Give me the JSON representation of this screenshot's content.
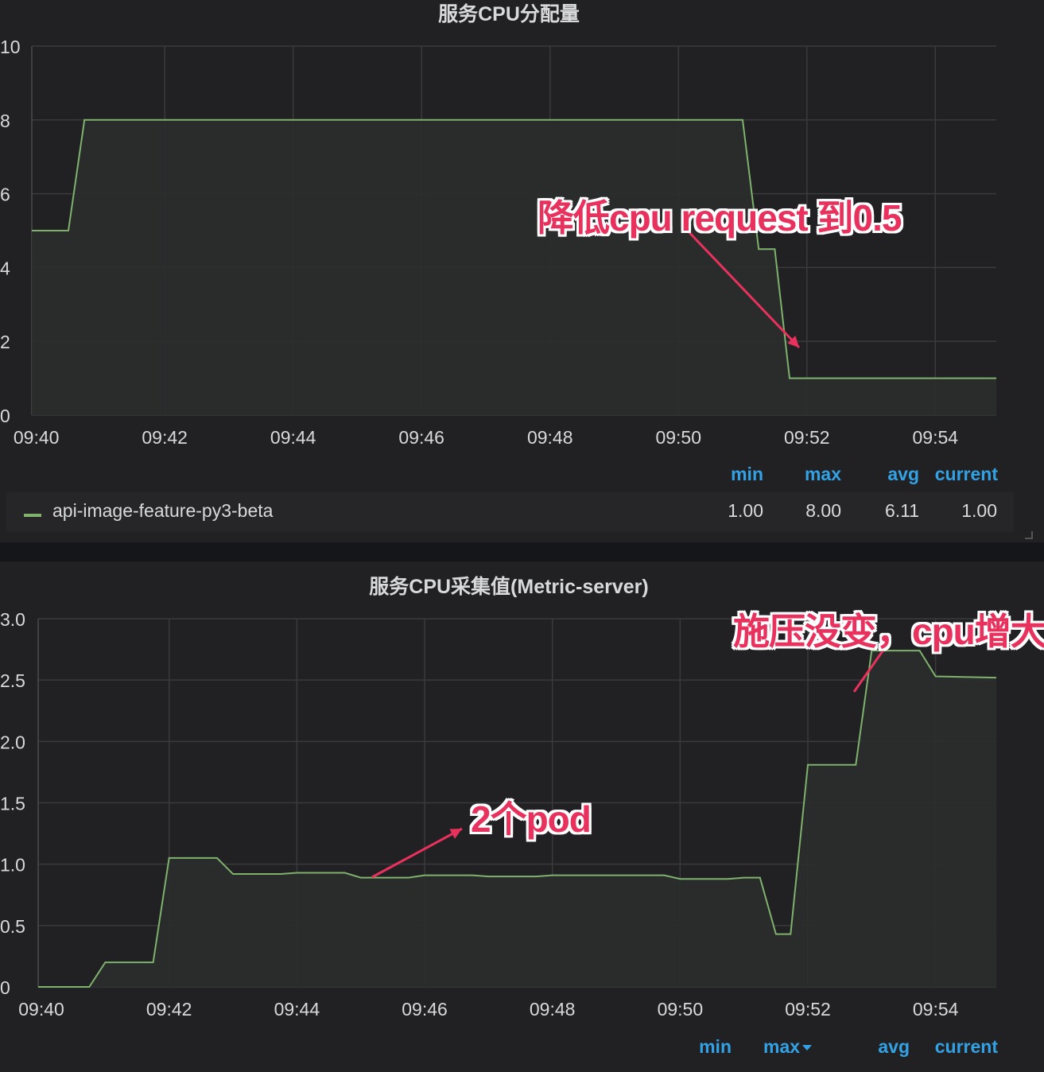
{
  "colors": {
    "series": "#7eb26d",
    "fill": "#2a2e2c",
    "grid": "#3a3a3d",
    "axis_text": "#d8d9da",
    "legend_header": "#33a2e5",
    "annotation": "#e8315d"
  },
  "panel1": {
    "title": "服务CPU分配量",
    "legend": {
      "headers": [
        "min",
        "max",
        "avg",
        "current"
      ],
      "series_name": "api-image-feature-py3-beta",
      "values": [
        "1.00",
        "8.00",
        "6.11",
        "1.00"
      ]
    },
    "annotation": "降低cpu request 到0.5"
  },
  "panel2": {
    "title": "服务CPU采集值(Metric-server)",
    "legend": {
      "headers": [
        "min",
        "max",
        "avg",
        "current"
      ]
    },
    "annotation_a": "2个pod",
    "annotation_b": "施压没变，cpu增大"
  },
  "chart_data": [
    {
      "type": "area",
      "title": "服务CPU分配量",
      "x_tick_labels": [
        "09:40",
        "09:42",
        "09:44",
        "09:46",
        "09:48",
        "09:50",
        "09:52",
        "09:54"
      ],
      "y_tick_labels": [
        "0",
        "2",
        "4",
        "6",
        "8",
        "10"
      ],
      "ylim": [
        0,
        10
      ],
      "xlim_minutes": [
        -0.07,
        14.95
      ],
      "grid": true,
      "legend_placement": "bottom",
      "series": [
        {
          "name": "api-image-feature-py3-beta",
          "x_minutes": [
            -0.07,
            0.5,
            0.75,
            11.0,
            11.25,
            11.5,
            11.73,
            11.98,
            14.95
          ],
          "values": [
            5,
            5,
            8,
            8,
            4.5,
            4.5,
            1,
            1,
            1
          ]
        }
      ]
    },
    {
      "type": "area",
      "title": "服务CPU采集值(Metric-server)",
      "x_tick_labels": [
        "09:40",
        "09:42",
        "09:44",
        "09:46",
        "09:48",
        "09:50",
        "09:52",
        "09:54"
      ],
      "y_tick_labels": [
        "0",
        "0.5",
        "1.0",
        "1.5",
        "2.0",
        "2.5",
        "3.0"
      ],
      "ylim": [
        0,
        3.0
      ],
      "xlim_minutes": [
        -0.05,
        14.95
      ],
      "grid": true,
      "legend_placement": "bottom",
      "series": [
        {
          "x_minutes": [
            -0.05,
            0.75,
            1.0,
            1.75,
            2.0,
            2.75,
            3.0,
            3.75,
            4.0,
            4.75,
            5.0,
            5.75,
            6.0,
            6.75,
            7.0,
            7.75,
            8.0,
            8.75,
            9.0,
            9.75,
            10.0,
            10.75,
            11.0,
            11.25,
            11.5,
            11.73,
            12.0,
            12.75,
            13.0,
            13.75,
            14.0,
            14.95
          ],
          "values": [
            0,
            0,
            0.2,
            0.2,
            1.05,
            1.05,
            0.92,
            0.92,
            0.93,
            0.93,
            0.89,
            0.89,
            0.91,
            0.91,
            0.9,
            0.9,
            0.91,
            0.91,
            0.91,
            0.91,
            0.88,
            0.88,
            0.89,
            0.89,
            0.43,
            0.43,
            1.81,
            1.81,
            2.74,
            2.74,
            2.53,
            2.52
          ]
        }
      ]
    }
  ]
}
